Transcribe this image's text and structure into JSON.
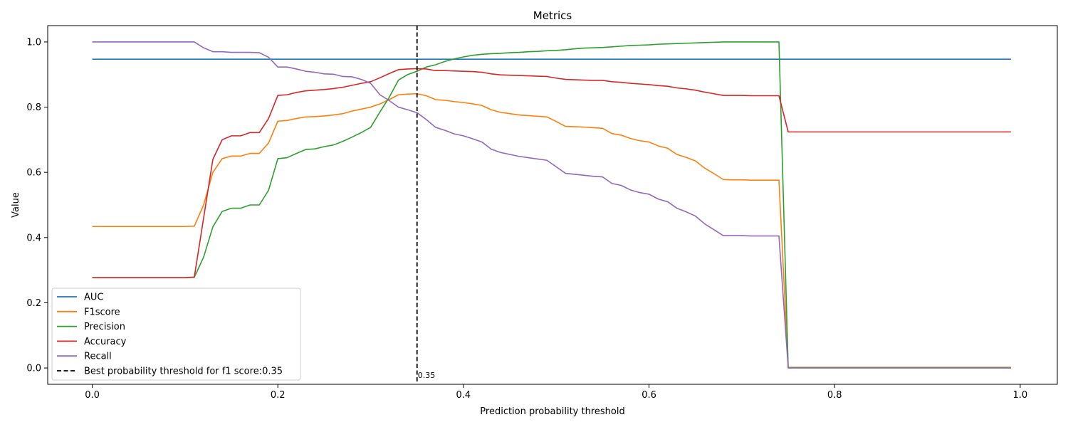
{
  "chart_data": {
    "type": "line",
    "title": "Metrics",
    "xlabel": "Prediction probability threshold",
    "ylabel": "Value",
    "xlim": [
      -0.048,
      1.04
    ],
    "ylim": [
      -0.05,
      1.05
    ],
    "xticks": [
      "0.0",
      "0.2",
      "0.4",
      "0.6",
      "0.8",
      "1.0"
    ],
    "yticks": [
      "0.0",
      "0.2",
      "0.4",
      "0.6",
      "0.8",
      "1.0"
    ],
    "grid": false,
    "legend_position": "lower-left",
    "x": [
      0.0,
      0.01,
      0.02,
      0.03,
      0.04,
      0.05,
      0.06,
      0.07,
      0.08,
      0.09,
      0.1,
      0.11,
      0.12,
      0.13,
      0.14,
      0.15,
      0.16,
      0.17,
      0.18,
      0.19,
      0.2,
      0.21,
      0.22,
      0.23,
      0.24,
      0.25,
      0.26,
      0.27,
      0.28,
      0.29,
      0.3,
      0.31,
      0.32,
      0.33,
      0.34,
      0.35,
      0.36,
      0.37,
      0.38,
      0.39,
      0.4,
      0.41,
      0.42,
      0.43,
      0.44,
      0.45,
      0.46,
      0.47,
      0.48,
      0.49,
      0.5,
      0.51,
      0.52,
      0.53,
      0.54,
      0.55,
      0.56,
      0.57,
      0.58,
      0.59,
      0.6,
      0.61,
      0.62,
      0.63,
      0.64,
      0.65,
      0.66,
      0.67,
      0.68,
      0.69,
      0.7,
      0.71,
      0.72,
      0.73,
      0.74,
      0.75,
      0.76,
      0.77,
      0.78,
      0.79,
      0.8,
      0.81,
      0.82,
      0.83,
      0.84,
      0.85,
      0.86,
      0.87,
      0.88,
      0.89,
      0.9,
      0.91,
      0.92,
      0.93,
      0.94,
      0.95,
      0.96,
      0.97,
      0.98,
      0.99
    ],
    "series": [
      {
        "name": "AUC",
        "color": "#1f77b4",
        "values": [
          0.947,
          0.947,
          0.947,
          0.947,
          0.947,
          0.947,
          0.947,
          0.947,
          0.947,
          0.947,
          0.947,
          0.947,
          0.947,
          0.947,
          0.947,
          0.947,
          0.947,
          0.947,
          0.947,
          0.947,
          0.947,
          0.947,
          0.947,
          0.947,
          0.947,
          0.947,
          0.947,
          0.947,
          0.947,
          0.947,
          0.947,
          0.947,
          0.947,
          0.947,
          0.947,
          0.947,
          0.947,
          0.947,
          0.947,
          0.947,
          0.947,
          0.947,
          0.947,
          0.947,
          0.947,
          0.947,
          0.947,
          0.947,
          0.947,
          0.947,
          0.947,
          0.947,
          0.947,
          0.947,
          0.947,
          0.947,
          0.947,
          0.947,
          0.947,
          0.947,
          0.947,
          0.947,
          0.947,
          0.947,
          0.947,
          0.947,
          0.947,
          0.947,
          0.947,
          0.947,
          0.947,
          0.947,
          0.947,
          0.947,
          0.947,
          0.947,
          0.947,
          0.947,
          0.947,
          0.947,
          0.947,
          0.947,
          0.947,
          0.947,
          0.947,
          0.947,
          0.947,
          0.947,
          0.947,
          0.947,
          0.947,
          0.947,
          0.947,
          0.947,
          0.947,
          0.947,
          0.947,
          0.947,
          0.947,
          0.947
        ]
      },
      {
        "name": "F1score",
        "color": "#ff7f0e",
        "values": [
          0.434,
          0.434,
          0.434,
          0.434,
          0.434,
          0.434,
          0.434,
          0.434,
          0.434,
          0.434,
          0.434,
          0.435,
          0.5,
          0.6,
          0.642,
          0.65,
          0.65,
          0.658,
          0.658,
          0.69,
          0.757,
          0.759,
          0.765,
          0.77,
          0.771,
          0.773,
          0.776,
          0.78,
          0.788,
          0.794,
          0.8,
          0.81,
          0.823,
          0.838,
          0.84,
          0.841,
          0.835,
          0.823,
          0.821,
          0.817,
          0.814,
          0.81,
          0.805,
          0.792,
          0.784,
          0.78,
          0.776,
          0.774,
          0.772,
          0.77,
          0.756,
          0.741,
          0.74,
          0.739,
          0.737,
          0.735,
          0.719,
          0.714,
          0.704,
          0.697,
          0.693,
          0.681,
          0.674,
          0.655,
          0.646,
          0.635,
          0.613,
          0.596,
          0.578,
          0.577,
          0.577,
          0.576,
          0.576,
          0.576,
          0.576,
          0.002,
          0.002,
          0.002,
          0.002,
          0.002,
          0.002,
          0.002,
          0.002,
          0.002,
          0.002,
          0.002,
          0.002,
          0.002,
          0.002,
          0.002,
          0.002,
          0.002,
          0.002,
          0.002,
          0.002,
          0.002,
          0.002,
          0.002,
          0.002,
          0.002
        ]
      },
      {
        "name": "Precision",
        "color": "#2ca02c",
        "values": [
          0.277,
          0.277,
          0.277,
          0.277,
          0.277,
          0.277,
          0.277,
          0.277,
          0.277,
          0.277,
          0.277,
          0.278,
          0.34,
          0.433,
          0.48,
          0.49,
          0.49,
          0.5,
          0.5,
          0.545,
          0.642,
          0.645,
          0.658,
          0.67,
          0.672,
          0.679,
          0.684,
          0.695,
          0.708,
          0.722,
          0.738,
          0.785,
          0.83,
          0.883,
          0.9,
          0.91,
          0.923,
          0.93,
          0.94,
          0.948,
          0.954,
          0.959,
          0.962,
          0.964,
          0.965,
          0.967,
          0.968,
          0.97,
          0.971,
          0.973,
          0.974,
          0.976,
          0.979,
          0.981,
          0.982,
          0.983,
          0.985,
          0.987,
          0.989,
          0.99,
          0.991,
          0.993,
          0.994,
          0.995,
          0.996,
          0.997,
          0.998,
          0.999,
          1.0,
          1.0,
          1.0,
          1.0,
          1.0,
          1.0,
          1.0,
          0.0,
          0.0,
          0.0,
          0.0,
          0.0,
          0.0,
          0.0,
          0.0,
          0.0,
          0.0,
          0.0,
          0.0,
          0.0,
          0.0,
          0.0,
          0.0,
          0.0,
          0.0,
          0.0,
          0.0,
          0.0,
          0.0,
          0.0,
          0.0,
          0.0
        ]
      },
      {
        "name": "Accuracy",
        "color": "#d62728",
        "values": [
          0.277,
          0.277,
          0.277,
          0.277,
          0.277,
          0.277,
          0.277,
          0.277,
          0.277,
          0.277,
          0.277,
          0.279,
          0.46,
          0.64,
          0.7,
          0.712,
          0.712,
          0.722,
          0.722,
          0.765,
          0.836,
          0.838,
          0.845,
          0.85,
          0.852,
          0.854,
          0.857,
          0.861,
          0.867,
          0.873,
          0.878,
          0.89,
          0.903,
          0.915,
          0.917,
          0.918,
          0.917,
          0.912,
          0.912,
          0.911,
          0.91,
          0.909,
          0.907,
          0.902,
          0.899,
          0.898,
          0.897,
          0.896,
          0.895,
          0.894,
          0.889,
          0.885,
          0.884,
          0.883,
          0.882,
          0.882,
          0.878,
          0.876,
          0.873,
          0.871,
          0.869,
          0.866,
          0.864,
          0.859,
          0.856,
          0.852,
          0.846,
          0.841,
          0.836,
          0.836,
          0.836,
          0.835,
          0.835,
          0.835,
          0.835,
          0.724,
          0.724,
          0.724,
          0.724,
          0.724,
          0.724,
          0.724,
          0.724,
          0.724,
          0.724,
          0.724,
          0.724,
          0.724,
          0.724,
          0.724,
          0.724,
          0.724,
          0.724,
          0.724,
          0.724,
          0.724,
          0.724,
          0.724,
          0.724,
          0.724
        ]
      },
      {
        "name": "Recall",
        "color": "#9467bd",
        "values": [
          1.0,
          1.0,
          1.0,
          1.0,
          1.0,
          1.0,
          1.0,
          1.0,
          1.0,
          1.0,
          1.0,
          1.0,
          0.982,
          0.97,
          0.97,
          0.968,
          0.968,
          0.968,
          0.967,
          0.953,
          0.923,
          0.923,
          0.917,
          0.91,
          0.907,
          0.902,
          0.901,
          0.894,
          0.893,
          0.885,
          0.873,
          0.838,
          0.82,
          0.8,
          0.792,
          0.783,
          0.762,
          0.738,
          0.729,
          0.718,
          0.712,
          0.703,
          0.693,
          0.671,
          0.661,
          0.655,
          0.649,
          0.645,
          0.641,
          0.637,
          0.617,
          0.597,
          0.594,
          0.591,
          0.588,
          0.586,
          0.566,
          0.56,
          0.546,
          0.538,
          0.533,
          0.518,
          0.51,
          0.49,
          0.479,
          0.466,
          0.442,
          0.424,
          0.406,
          0.406,
          0.406,
          0.405,
          0.405,
          0.405,
          0.405,
          0.001,
          0.001,
          0.001,
          0.001,
          0.001,
          0.001,
          0.001,
          0.001,
          0.001,
          0.001,
          0.001,
          0.001,
          0.001,
          0.001,
          0.001,
          0.001,
          0.001,
          0.001,
          0.001,
          0.001,
          0.001,
          0.001,
          0.001,
          0.001,
          0.001
        ]
      }
    ],
    "threshold_line": {
      "x": 0.35,
      "label": "Best probability threshold for f1 score:0.35",
      "annotation": "0.35",
      "color": "#000000",
      "style": "dashed"
    }
  }
}
